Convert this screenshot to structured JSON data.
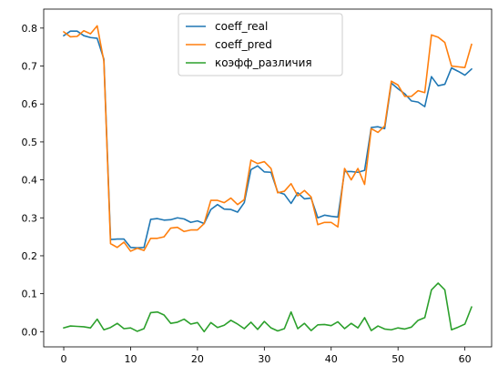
{
  "chart_data": {
    "type": "line",
    "title": "",
    "xlabel": "",
    "ylabel": "",
    "xlim": [
      -3,
      64
    ],
    "ylim": [
      -0.04,
      0.85
    ],
    "x_ticks": [
      0,
      10,
      20,
      30,
      40,
      50,
      60
    ],
    "y_ticks": [
      0.0,
      0.1,
      0.2,
      0.3,
      0.4,
      0.5,
      0.6,
      0.7,
      0.8
    ],
    "grid": false,
    "legend_position": "top-center",
    "series": [
      {
        "name": "coeff_real",
        "color": "#1f77b4",
        "values": [
          0.78,
          0.792,
          0.792,
          0.78,
          0.775,
          0.773,
          0.718,
          0.243,
          0.244,
          0.244,
          0.222,
          0.221,
          0.222,
          0.296,
          0.298,
          0.294,
          0.295,
          0.3,
          0.297,
          0.288,
          0.292,
          0.285,
          0.322,
          0.335,
          0.323,
          0.322,
          0.315,
          0.34,
          0.427,
          0.437,
          0.421,
          0.42,
          0.368,
          0.362,
          0.338,
          0.366,
          0.35,
          0.352,
          0.3,
          0.307,
          0.304,
          0.302,
          0.422,
          0.422,
          0.42,
          0.425,
          0.538,
          0.54,
          0.535,
          0.655,
          0.64,
          0.627,
          0.608,
          0.605,
          0.593,
          0.672,
          0.648,
          0.652,
          0.695,
          0.686,
          0.676,
          0.692
        ]
      },
      {
        "name": "coeff_pred",
        "color": "#ff7f0e",
        "values": [
          0.79,
          0.777,
          0.778,
          0.793,
          0.785,
          0.806,
          0.713,
          0.232,
          0.222,
          0.236,
          0.212,
          0.22,
          0.214,
          0.246,
          0.246,
          0.25,
          0.273,
          0.275,
          0.264,
          0.268,
          0.268,
          0.285,
          0.346,
          0.346,
          0.34,
          0.352,
          0.335,
          0.348,
          0.452,
          0.443,
          0.448,
          0.43,
          0.366,
          0.37,
          0.39,
          0.358,
          0.372,
          0.355,
          0.282,
          0.288,
          0.288,
          0.276,
          0.43,
          0.4,
          0.43,
          0.388,
          0.535,
          0.525,
          0.542,
          0.66,
          0.65,
          0.62,
          0.62,
          0.635,
          0.63,
          0.782,
          0.776,
          0.762,
          0.7,
          0.698,
          0.696,
          0.757
        ]
      },
      {
        "name": "коэфф_различия",
        "color": "#2ca02c",
        "values": [
          0.01,
          0.015,
          0.014,
          0.013,
          0.01,
          0.033,
          0.005,
          0.011,
          0.022,
          0.008,
          0.01,
          0.001,
          0.008,
          0.05,
          0.052,
          0.044,
          0.022,
          0.025,
          0.033,
          0.02,
          0.024,
          0.0,
          0.024,
          0.011,
          0.017,
          0.03,
          0.02,
          0.008,
          0.025,
          0.006,
          0.027,
          0.01,
          0.002,
          0.008,
          0.052,
          0.008,
          0.022,
          0.003,
          0.018,
          0.019,
          0.016,
          0.026,
          0.008,
          0.022,
          0.01,
          0.037,
          0.003,
          0.015,
          0.007,
          0.005,
          0.01,
          0.007,
          0.012,
          0.03,
          0.037,
          0.11,
          0.128,
          0.11,
          0.005,
          0.012,
          0.02,
          0.065
        ]
      }
    ]
  }
}
